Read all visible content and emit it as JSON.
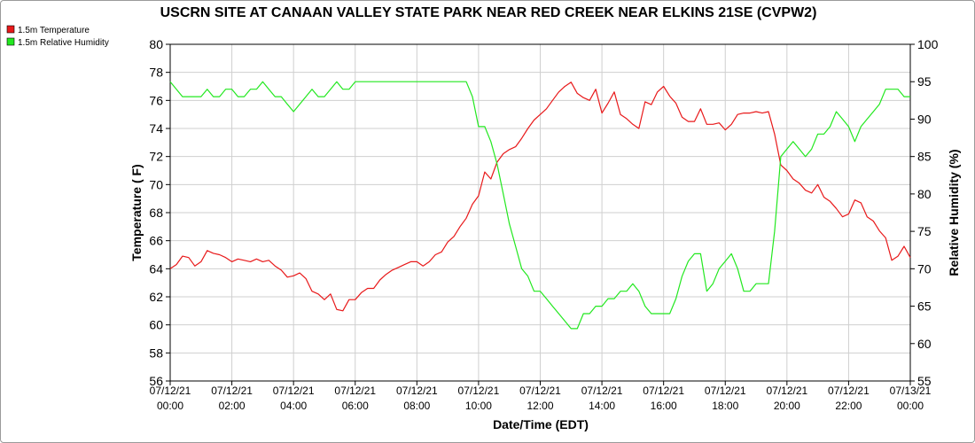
{
  "chart_data": {
    "type": "line",
    "title": "USCRN SITE AT CANAAN VALLEY STATE PARK NEAR RED CREEK NEAR ELKINS 21SE (CVPW2)",
    "xlabel": "Date/Time (EDT)",
    "ylabel": "Temperature ( F)",
    "y2label": "Relative Humidity (%)",
    "xlim": [
      0,
      24
    ],
    "ylim": [
      56,
      80
    ],
    "y2lim": [
      55,
      100
    ],
    "yticks": [
      56,
      58,
      60,
      62,
      64,
      66,
      68,
      70,
      72,
      74,
      76,
      78,
      80
    ],
    "y2ticks": [
      55,
      60,
      65,
      70,
      75,
      80,
      85,
      90,
      95,
      100
    ],
    "xticks": [
      0,
      2,
      4,
      6,
      8,
      10,
      12,
      14,
      16,
      18,
      20,
      22,
      24
    ],
    "xtick_labels": [
      [
        "07/12/21",
        "00:00"
      ],
      [
        "07/12/21",
        "02:00"
      ],
      [
        "07/12/21",
        "04:00"
      ],
      [
        "07/12/21",
        "06:00"
      ],
      [
        "07/12/21",
        "08:00"
      ],
      [
        "07/12/21",
        "10:00"
      ],
      [
        "07/12/21",
        "12:00"
      ],
      [
        "07/12/21",
        "14:00"
      ],
      [
        "07/12/21",
        "16:00"
      ],
      [
        "07/12/21",
        "18:00"
      ],
      [
        "07/12/21",
        "20:00"
      ],
      [
        "07/12/21",
        "22:00"
      ],
      [
        "07/13/21",
        "00:00"
      ]
    ],
    "grid": true,
    "legend_position": "top-left",
    "series": [
      {
        "name": "1.5m Temperature",
        "color": "#e8191a",
        "axis": "left",
        "x": [
          0,
          0.2,
          0.4,
          0.6,
          0.8,
          1.0,
          1.2,
          1.4,
          1.6,
          1.8,
          2.0,
          2.2,
          2.4,
          2.6,
          2.8,
          3.0,
          3.2,
          3.4,
          3.6,
          3.8,
          4.0,
          4.2,
          4.4,
          4.6,
          4.8,
          5.0,
          5.2,
          5.4,
          5.6,
          5.8,
          6.0,
          6.2,
          6.4,
          6.6,
          6.8,
          7.0,
          7.2,
          7.4,
          7.6,
          7.8,
          8.0,
          8.2,
          8.4,
          8.6,
          8.8,
          9.0,
          9.2,
          9.4,
          9.6,
          9.8,
          10.0,
          10.2,
          10.4,
          10.6,
          10.8,
          11.0,
          11.2,
          11.4,
          11.6,
          11.8,
          12.0,
          12.2,
          12.4,
          12.6,
          12.8,
          13.0,
          13.2,
          13.4,
          13.6,
          13.8,
          14.0,
          14.2,
          14.4,
          14.6,
          14.8,
          15.0,
          15.2,
          15.4,
          15.6,
          15.8,
          16.0,
          16.2,
          16.4,
          16.6,
          16.8,
          17.0,
          17.2,
          17.4,
          17.6,
          17.8,
          18.0,
          18.2,
          18.4,
          18.6,
          18.8,
          19.0,
          19.2,
          19.4,
          19.6,
          19.8,
          20.0,
          20.2,
          20.4,
          20.6,
          20.8,
          21.0,
          21.2,
          21.4,
          21.6,
          21.8,
          22.0,
          22.2,
          22.4,
          22.6,
          22.8,
          23.0,
          23.2,
          23.4,
          23.6,
          23.8,
          24.0
        ],
        "values": [
          64.0,
          64.3,
          64.9,
          64.8,
          64.2,
          64.5,
          65.3,
          65.1,
          65.0,
          64.8,
          64.5,
          64.7,
          64.6,
          64.5,
          64.7,
          64.5,
          64.6,
          64.2,
          63.9,
          63.4,
          63.5,
          63.7,
          63.3,
          62.4,
          62.2,
          61.8,
          62.2,
          61.1,
          61.0,
          61.8,
          61.8,
          62.3,
          62.6,
          62.6,
          63.2,
          63.6,
          63.9,
          64.1,
          64.3,
          64.5,
          64.5,
          64.2,
          64.5,
          65.0,
          65.2,
          65.9,
          66.3,
          67.0,
          67.6,
          68.6,
          69.2,
          70.9,
          70.4,
          71.6,
          72.2,
          72.5,
          72.7,
          73.3,
          74.0,
          74.6,
          75.0,
          75.4,
          76.0,
          76.6,
          77.0,
          77.3,
          76.5,
          76.2,
          76.0,
          76.8,
          75.1,
          75.8,
          76.6,
          75.0,
          74.7,
          74.3,
          74.0,
          75.9,
          75.7,
          76.6,
          77.0,
          76.3,
          75.8,
          74.8,
          74.5,
          74.5,
          75.4,
          74.3,
          74.3,
          74.4,
          73.9,
          74.3,
          75.0,
          75.1,
          75.1,
          75.2,
          75.1,
          75.2,
          73.6,
          71.4,
          71.0,
          70.4,
          70.1,
          69.6,
          69.4,
          70.0,
          69.1,
          68.8,
          68.3,
          67.7,
          67.9,
          68.9,
          68.7,
          67.7,
          67.4,
          66.7,
          66.2,
          64.6,
          64.9,
          65.6,
          64.8
        ]
      },
      {
        "name": "1.5m Relative Humidity",
        "color": "#22e81f",
        "axis": "right",
        "x": [
          0,
          0.2,
          0.4,
          0.6,
          0.8,
          1.0,
          1.2,
          1.4,
          1.6,
          1.8,
          2.0,
          2.2,
          2.4,
          2.6,
          2.8,
          3.0,
          3.2,
          3.4,
          3.6,
          3.8,
          4.0,
          4.2,
          4.4,
          4.6,
          4.8,
          5.0,
          5.2,
          5.4,
          5.6,
          5.8,
          6.0,
          6.2,
          6.4,
          6.6,
          6.8,
          7.0,
          7.2,
          7.4,
          7.6,
          7.8,
          8.0,
          8.2,
          8.4,
          8.6,
          8.8,
          9.0,
          9.2,
          9.4,
          9.6,
          9.8,
          10.0,
          10.2,
          10.4,
          10.6,
          10.8,
          11.0,
          11.2,
          11.4,
          11.6,
          11.8,
          12.0,
          12.2,
          12.4,
          12.6,
          12.8,
          13.0,
          13.2,
          13.4,
          13.6,
          13.8,
          14.0,
          14.2,
          14.4,
          14.6,
          14.8,
          15.0,
          15.2,
          15.4,
          15.6,
          15.8,
          16.0,
          16.2,
          16.4,
          16.6,
          16.8,
          17.0,
          17.2,
          17.4,
          17.6,
          17.8,
          18.0,
          18.2,
          18.4,
          18.6,
          18.8,
          19.0,
          19.2,
          19.4,
          19.6,
          19.8,
          20.0,
          20.2,
          20.4,
          20.6,
          20.8,
          21.0,
          21.2,
          21.4,
          21.6,
          21.8,
          22.0,
          22.2,
          22.4,
          22.6,
          22.8,
          23.0,
          23.2,
          23.4,
          23.6,
          23.8,
          24.0
        ],
        "values": [
          95,
          94,
          93,
          93,
          93,
          93,
          94,
          93,
          93,
          94,
          94,
          93,
          93,
          94,
          94,
          95,
          94,
          93,
          93,
          92,
          91,
          92,
          93,
          94,
          93,
          93,
          94,
          95,
          94,
          94,
          95,
          95,
          95,
          95,
          95,
          95,
          95,
          95,
          95,
          95,
          95,
          95,
          95,
          95,
          95,
          95,
          95,
          95,
          95,
          93,
          89,
          89,
          87,
          84,
          80,
          76,
          73,
          70,
          69,
          67,
          67,
          66,
          65,
          64,
          63,
          62,
          62,
          64,
          64,
          65,
          65,
          66,
          66,
          67,
          67,
          68,
          67,
          65,
          64,
          64,
          64,
          64,
          66,
          69,
          71,
          72,
          72,
          67,
          68,
          70,
          71,
          72,
          70,
          67,
          67,
          68,
          68,
          68,
          75,
          85,
          86,
          87,
          86,
          85,
          86,
          88,
          88,
          89,
          91,
          90,
          89,
          87,
          89,
          90,
          91,
          92,
          94,
          94,
          94,
          93,
          93
        ]
      }
    ]
  }
}
